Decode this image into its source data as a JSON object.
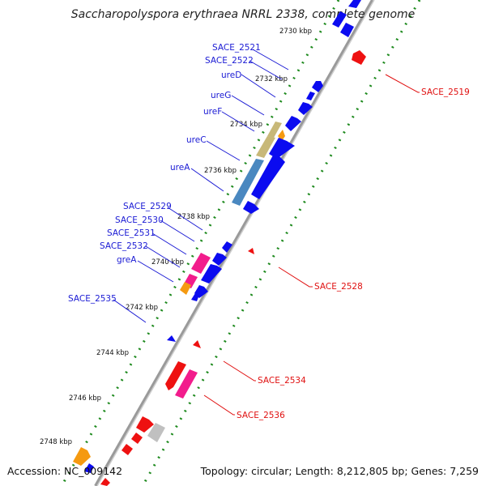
{
  "title": "Saccharopolyspora erythraea NRRL 2338, complete genome",
  "footer": {
    "accession": "Accession: NC_009142",
    "summary": "Topology: circular; Length: 8,212,805 bp; Genes: 7,259"
  },
  "colors": {
    "forward_gene": "#0b0bf0",
    "reverse_gene": "#ee1111",
    "backbone": "#8a8a8a",
    "tick_dots": "#1e8a1e",
    "label_forward": "#1a1ad4",
    "label_reverse": "#e01010",
    "ure_cluster_olive": "#c8b878",
    "ure_cluster_steel": "#4a88c0",
    "highlight_orange": "#f59a10",
    "highlight_magenta": "#f21c8c",
    "highlight_gray": "#c0c0c0"
  },
  "scale_labels": [
    "2730 kbp",
    "2732 kbp",
    "2734 kbp",
    "2736 kbp",
    "2738 kbp",
    "2740 kbp",
    "2742 kbp",
    "2744 kbp",
    "2746 kbp",
    "2748 kbp"
  ],
  "forward_labels": [
    "SACE_2521",
    "SACE_2522",
    "ureD",
    "ureG",
    "ureF",
    "ureC",
    "ureA",
    "SACE_2529",
    "SACE_2530",
    "SACE_2531",
    "SACE_2532",
    "greA",
    "SACE_2535"
  ],
  "reverse_labels": [
    "SACE_2519",
    "SACE_2528",
    "SACE_2534",
    "SACE_2536"
  ]
}
